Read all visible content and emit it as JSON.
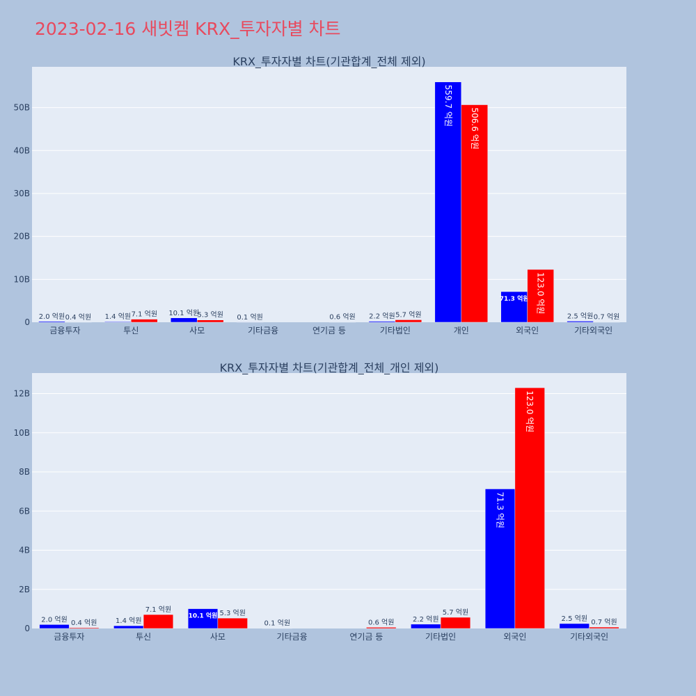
{
  "title": "2023-02-16 새빗켐 KRX_투자자별 차트",
  "colors": {
    "buy": "#0000ff",
    "sell": "#ff0000",
    "plot_bg": "#e5ecf6",
    "page_bg": "#b0c4de",
    "title": "#e8495d"
  },
  "chart_data": [
    {
      "type": "bar",
      "title": "KRX_투자자별 차트(기관합계_전체 제외)",
      "categories": [
        "금융투자",
        "투신",
        "사모",
        "기타금융",
        "연기금 등",
        "기타법인",
        "개인",
        "외국인",
        "기타외국인"
      ],
      "series": [
        {
          "values": [
            0.2,
            0.14,
            1.01,
            0.01,
            0,
            0.22,
            55.97,
            7.13,
            0.25
          ],
          "labels": [
            "2.0 억원",
            "1.4 억원",
            "10.1 억원",
            "0.1 억원",
            "",
            "2.2 억원",
            "559.7 억원",
            "71.3 억원",
            "2.5 억원"
          ]
        },
        {
          "values": [
            0.04,
            0.71,
            0.53,
            0,
            0.06,
            0.57,
            50.66,
            12.3,
            0.07
          ],
          "labels": [
            "0.4 억원",
            "7.1 억원",
            "5.3 억원",
            "",
            "0.6 억원",
            "5.7 억원",
            "506.6 억원",
            "123.0 억원",
            "0.7 억원"
          ]
        }
      ],
      "yticks": [
        "0",
        "10B",
        "20B",
        "30B",
        "40B",
        "50B"
      ],
      "ytick_values": [
        0,
        10,
        20,
        30,
        40,
        50
      ],
      "ylim": [
        0,
        59.5
      ],
      "grid": true
    },
    {
      "type": "bar",
      "title": "KRX_투자자별 차트(기관합계_전체_개인 제외)",
      "categories": [
        "금융투자",
        "투신",
        "사모",
        "기타금융",
        "연기금 등",
        "기타법인",
        "외국인",
        "기타외국인"
      ],
      "series": [
        {
          "values": [
            0.2,
            0.14,
            1.01,
            0.01,
            0,
            0.22,
            7.13,
            0.25
          ],
          "labels": [
            "2.0 억원",
            "1.4 억원",
            "10.1 억원",
            "0.1 억원",
            "",
            "2.2 억원",
            "71.3 억원",
            "2.5 억원"
          ]
        },
        {
          "values": [
            0.04,
            0.71,
            0.53,
            0,
            0.06,
            0.57,
            12.3,
            0.07
          ],
          "labels": [
            "0.4 억원",
            "7.1 억원",
            "5.3 억원",
            "",
            "0.6 억원",
            "5.7 억원",
            "123.0 억원",
            "0.7 억원"
          ]
        }
      ],
      "yticks": [
        "0",
        "2B",
        "4B",
        "6B",
        "8B",
        "10B",
        "12B"
      ],
      "ytick_values": [
        0,
        2,
        4,
        6,
        8,
        10,
        12
      ],
      "ylim": [
        0,
        13.05
      ],
      "grid": true
    }
  ]
}
